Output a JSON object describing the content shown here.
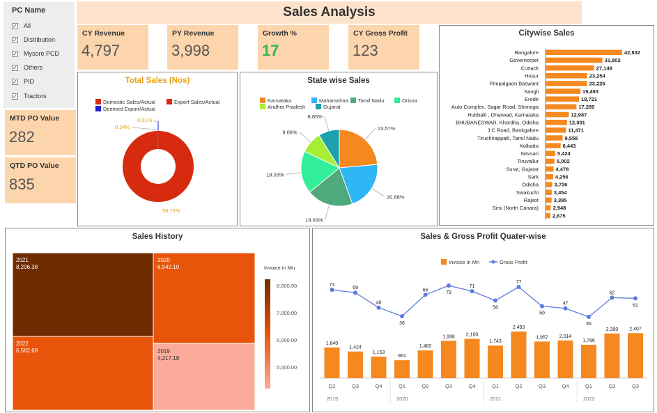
{
  "title": "Sales Analysis",
  "filter": {
    "header": "PC Name",
    "items": [
      "All",
      "Distribution",
      "Mysore PCD",
      "Others",
      "PID",
      "Tractors"
    ]
  },
  "mtd": {
    "label": "MTD PO Value",
    "value": "282"
  },
  "qtd": {
    "label": "QTD PO Value",
    "value": "835"
  },
  "kpis": {
    "cy_revenue": {
      "label": "CY Revenue",
      "value": "4,797"
    },
    "py_revenue": {
      "label": "PY Revenue",
      "value": "3,998"
    },
    "growth": {
      "label": "Growth %",
      "value": "17"
    },
    "cy_gross_profit": {
      "label": "CY Gross Profit",
      "value": "123"
    }
  },
  "colors": {
    "accent": "#f5891f",
    "title_bg": "#fde3cb",
    "kpi_bg": "#fdd5ad",
    "growth": "#2eb84a"
  },
  "chart_data": [
    {
      "type": "pie",
      "title": "Total Sales (Nos)",
      "labels": [
        "Domestic Sales/Actual",
        "Export Sales/Actual",
        "Deemed Export/Actual"
      ],
      "values": [
        98.75,
        0.24,
        0.01
      ],
      "data_labels": [
        "98.75%",
        "0.24%",
        "0.01%"
      ],
      "colors": [
        "#d62b0e",
        "#e0301e",
        "#2020d0"
      ]
    },
    {
      "type": "pie",
      "title": "State wise Sales",
      "labels": [
        "Karnataka",
        "Maharashtra",
        "Tamil Nadu",
        "Orissa",
        "Andhra Pradesh",
        "Gujarat"
      ],
      "values": [
        23.57,
        20.86,
        19.63,
        18.03,
        9.06,
        8.85
      ],
      "data_labels": [
        "23.57%",
        "20.86%",
        "19.63%",
        "18.03%",
        "9.06%",
        "8.85%"
      ],
      "colors": [
        "#f5891f",
        "#2eb6f5",
        "#4ea97d",
        "#33ee99",
        "#a6ee33",
        "#1c9faf"
      ]
    },
    {
      "type": "bar",
      "title": "Citywise Sales",
      "categories": [
        "Bangalore",
        "Governorpet",
        "Cuttack",
        "Hosur",
        "Pimpalgaon Baswant",
        "Sangli",
        "Erode",
        "Auto Complex, Sagar Road, Shimoga",
        "Hubballi , Dharwad, Karnataka",
        "BHUBANESWAR, Khordha, Odisha",
        "J C Road, Bankgalore",
        "Tiruchirappalli, Tamil Nadu",
        "Kolkatta",
        "Navsari",
        "Tiruvallur",
        "Surat, Gujarat",
        "Sark",
        "Odisha",
        "Swakuchi",
        "Rajkot",
        "Sirsi (North Canara)",
        ""
      ],
      "values": [
        42832,
        31802,
        27149,
        23254,
        23226,
        19493,
        18721,
        17289,
        12987,
        12031,
        11471,
        9558,
        8443,
        5424,
        5002,
        4478,
        4256,
        3736,
        3454,
        3395,
        2948,
        2675
      ],
      "value_labels": [
        "42,832",
        "31,802",
        "27,149",
        "23,254",
        "23,226",
        "19,493",
        "18,721",
        "17,289",
        "12,987",
        "12,031",
        "11,471",
        "9,558",
        "8,443",
        "5,424",
        "5,002",
        "4,478",
        "4,256",
        "3,736",
        "3,454",
        "3,395",
        "2,948",
        "2,675"
      ]
    },
    {
      "type": "heatmap",
      "title": "Sales History",
      "legend_title": "Invoice in Mn",
      "legend_ticks": [
        "8,000.00",
        "7,000.00",
        "6,000.00",
        "5,000.00"
      ],
      "cells": [
        {
          "label": "2021",
          "value": "8,206.38"
        },
        {
          "label": "2020",
          "value": "6,542.10"
        },
        {
          "label": "2022",
          "value": "6,582.69"
        },
        {
          "label": "2019",
          "value": "4,217.18"
        }
      ]
    },
    {
      "type": "bar",
      "title": "Sales & Gross Profit Quater-wise",
      "legend": [
        "Invoice in Mn",
        "Gross Profit"
      ],
      "categories": [
        "Q2",
        "Q3",
        "Q4",
        "Q1",
        "Q2",
        "Q3",
        "Q4",
        "Q1",
        "Q2",
        "Q3",
        "Q4",
        "Q1",
        "Q2",
        "Q3"
      ],
      "years": [
        "2019",
        "2020",
        "2021",
        "2022"
      ],
      "series": [
        {
          "name": "Invoice in Mn",
          "values": [
            1640,
            1424,
            1153,
            961,
            1482,
            1998,
            2100,
            1743,
            2493,
            1957,
            2014,
            1786,
            2390,
            2407
          ],
          "labels": [
            "1,640",
            "1,424",
            "1,153",
            "961",
            "1,482",
            "1,998",
            "2,100",
            "1,743",
            "2,493",
            "1,957",
            "2,014",
            "1,786",
            "2,390",
            "2,407"
          ]
        },
        {
          "name": "Gross Profit",
          "values": [
            73,
            69,
            48,
            36,
            66,
            79,
            71,
            58,
            77,
            50,
            47,
            35,
            62,
            61
          ],
          "labels": [
            "73",
            "69",
            "48",
            "36",
            "66",
            "79",
            "71",
            "58",
            "77",
            "50",
            "47",
            "35",
            "62",
            "61"
          ]
        }
      ]
    }
  ]
}
